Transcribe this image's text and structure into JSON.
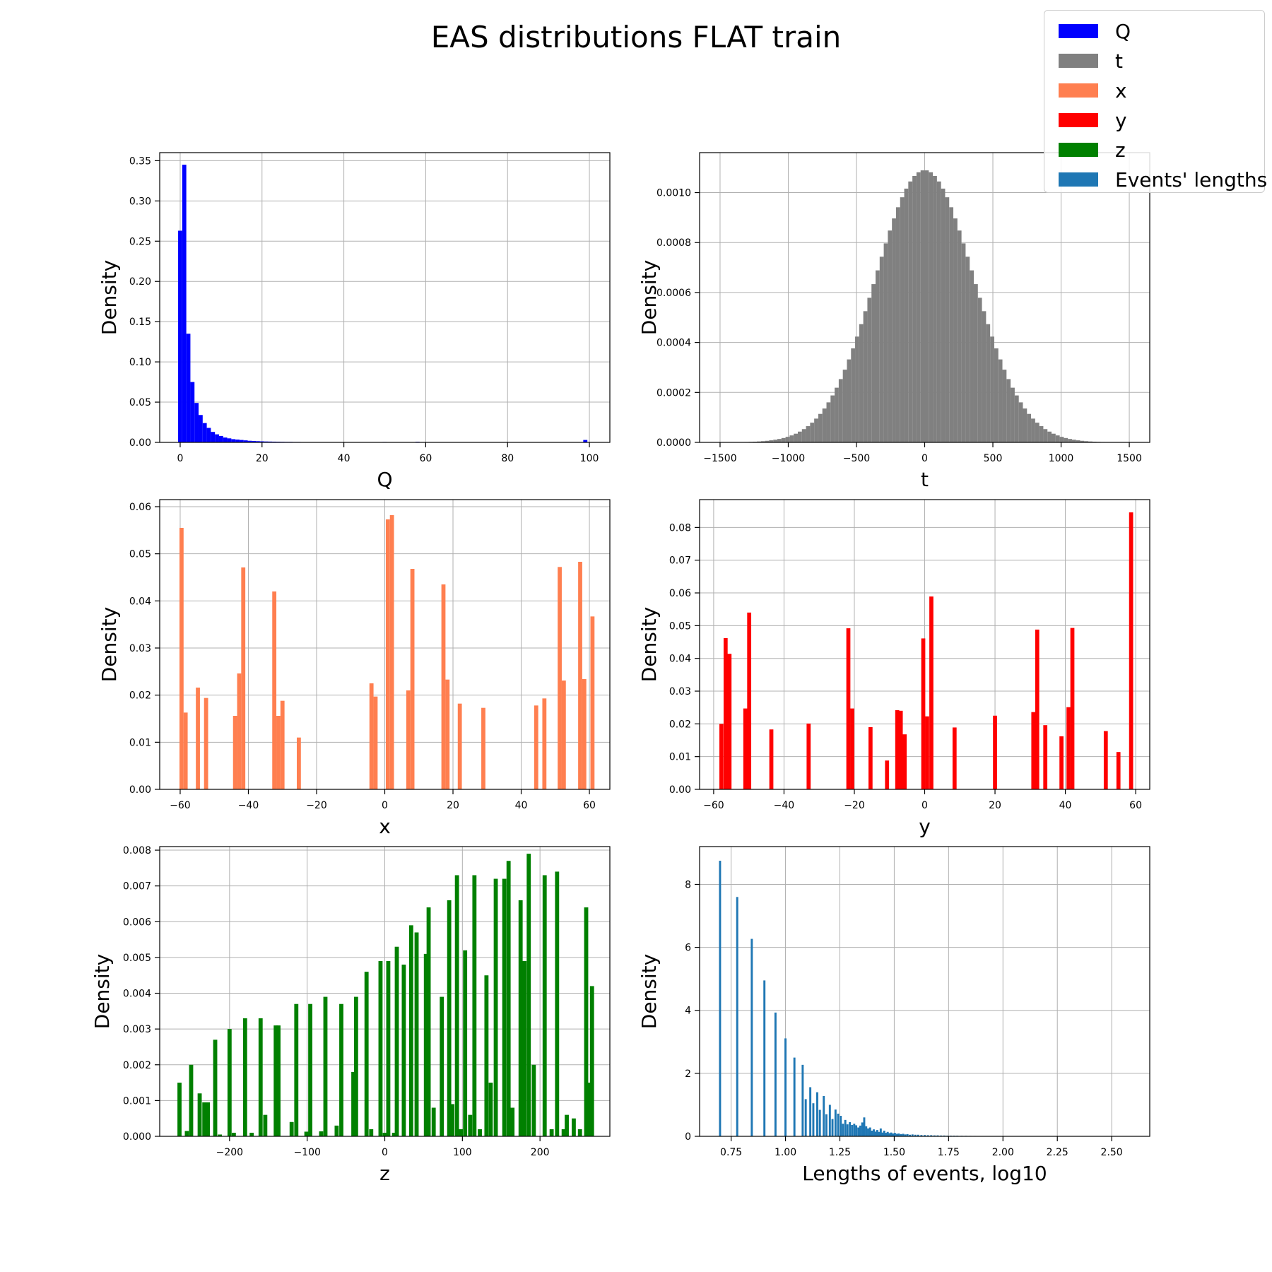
{
  "figure": {
    "title": "EAS distributions FLAT train",
    "legend": [
      {
        "label": "Q",
        "color": "#0000ff"
      },
      {
        "label": "t",
        "color": "#808080"
      },
      {
        "label": "x",
        "color": "#ff7f50"
      },
      {
        "label": "y",
        "color": "#ff0000"
      },
      {
        "label": "z",
        "color": "#008000"
      },
      {
        "label": "Events' lengths",
        "color": "#1f77b4"
      }
    ]
  },
  "chart_data": [
    {
      "type": "bar",
      "name": "Q",
      "color": "#0000ff",
      "xlabel": "Q",
      "ylabel": "Density",
      "xlim": [
        -5,
        105
      ],
      "ylim": [
        0,
        0.36
      ],
      "xticks": [
        0,
        20,
        40,
        60,
        80,
        100
      ],
      "xtick_labels": [
        "0",
        "20",
        "40",
        "60",
        "80",
        "100"
      ],
      "yticks": [
        0,
        0.05,
        0.1,
        0.15,
        0.2,
        0.25,
        0.3,
        0.35
      ],
      "ytick_labels": [
        "0.00",
        "0.05",
        "0.10",
        "0.15",
        "0.20",
        "0.25",
        "0.30",
        "0.35"
      ],
      "grid": true,
      "bin_width": 1,
      "x": [
        0,
        1,
        2,
        3,
        4,
        5,
        6,
        7,
        8,
        9,
        10,
        11,
        12,
        13,
        14,
        15,
        16,
        17,
        18,
        19,
        20,
        21,
        22,
        23,
        24,
        25,
        26,
        27,
        28,
        29,
        30,
        35,
        40,
        45,
        50,
        58,
        99
      ],
      "values": [
        0.263,
        0.345,
        0.135,
        0.075,
        0.049,
        0.034,
        0.024,
        0.018,
        0.013,
        0.01,
        0.008,
        0.006,
        0.005,
        0.004,
        0.0035,
        0.003,
        0.0025,
        0.002,
        0.0018,
        0.0015,
        0.0013,
        0.0011,
        0.001,
        0.0009,
        0.0008,
        0.0007,
        0.0006,
        0.0006,
        0.0005,
        0.0005,
        0.0004,
        0.0003,
        0.0004,
        0.0003,
        0.0005,
        0.0007,
        0.003
      ]
    },
    {
      "type": "bar",
      "name": "t",
      "color": "#808080",
      "xlabel": "t",
      "ylabel": "Density",
      "xlim": [
        -1650,
        1650
      ],
      "ylim": [
        0,
        0.00116
      ],
      "xticks": [
        -1500,
        -1000,
        -500,
        0,
        500,
        1000,
        1500
      ],
      "xtick_labels": [
        "−1500",
        "−1000",
        "−500",
        "0",
        "500",
        "1000",
        "1500"
      ],
      "yticks": [
        0,
        0.0002,
        0.0004,
        0.0006,
        0.0008,
        0.001
      ],
      "ytick_labels": [
        "0.0000",
        "0.0002",
        "0.0004",
        "0.0006",
        "0.0008",
        "0.0010"
      ],
      "grid": true,
      "distribution": {
        "kind": "gaussian",
        "mean": 0,
        "sd": 360,
        "peak": 0.00109
      },
      "bin_start": -1500,
      "bin_end": 1500,
      "bin_width": 30
    },
    {
      "type": "bar",
      "name": "x",
      "color": "#ff7f50",
      "xlabel": "x",
      "ylabel": "Density",
      "xlim": [
        -66,
        66
      ],
      "ylim": [
        0,
        0.0615
      ],
      "xticks": [
        -60,
        -40,
        -20,
        0,
        20,
        40,
        60
      ],
      "xtick_labels": [
        "−60",
        "−40",
        "−20",
        "0",
        "20",
        "40",
        "60"
      ],
      "yticks": [
        0,
        0.01,
        0.02,
        0.03,
        0.04,
        0.05,
        0.06
      ],
      "ytick_labels": [
        "0.00",
        "0.01",
        "0.02",
        "0.03",
        "0.04",
        "0.05",
        "0.06"
      ],
      "grid": true,
      "bin_width": 1.2,
      "x": [
        -59.6,
        -58.4,
        -54.8,
        -52.4,
        -43.9,
        -42.7,
        -41.5,
        -32.4,
        -31.2,
        -30.0,
        -25.2,
        -3.9,
        -2.7,
        0.9,
        2.1,
        6.9,
        8.1,
        17.2,
        18.4,
        22.0,
        28.9,
        44.4,
        46.8,
        51.3,
        52.5,
        57.3,
        58.5,
        60.9
      ],
      "values": [
        0.0555,
        0.0163,
        0.0216,
        0.0194,
        0.0156,
        0.0246,
        0.0471,
        0.042,
        0.0156,
        0.0188,
        0.011,
        0.0225,
        0.0197,
        0.0573,
        0.0582,
        0.021,
        0.0468,
        0.0435,
        0.0233,
        0.0182,
        0.0173,
        0.0178,
        0.0193,
        0.0472,
        0.0231,
        0.0483,
        0.0234,
        0.0367
      ]
    },
    {
      "type": "bar",
      "name": "y",
      "color": "#ff0000",
      "xlabel": "y",
      "ylabel": "Density",
      "xlim": [
        -64,
        64
      ],
      "ylim": [
        0,
        0.0885
      ],
      "xticks": [
        -60,
        -40,
        -20,
        0,
        20,
        40,
        60
      ],
      "xtick_labels": [
        "−60",
        "−40",
        "−20",
        "0",
        "20",
        "40",
        "60"
      ],
      "yticks": [
        0,
        0.01,
        0.02,
        0.03,
        0.04,
        0.05,
        0.06,
        0.07,
        0.08
      ],
      "ytick_labels": [
        "0.00",
        "0.01",
        "0.02",
        "0.03",
        "0.04",
        "0.05",
        "0.06",
        "0.07",
        "0.08"
      ],
      "grid": true,
      "bin_width": 1.15,
      "x": [
        -57.8,
        -56.6,
        -55.5,
        -51.0,
        -49.9,
        -43.6,
        -33.0,
        -21.7,
        -20.6,
        -15.4,
        -10.7,
        -7.8,
        -6.8,
        -5.7,
        -0.4,
        0.7,
        1.9,
        8.5,
        20.0,
        30.9,
        32.0,
        34.3,
        38.9,
        40.9,
        42.0,
        51.5,
        55.1,
        58.7
      ],
      "values": [
        0.02,
        0.0462,
        0.0414,
        0.0247,
        0.054,
        0.0183,
        0.0201,
        0.0492,
        0.0247,
        0.019,
        0.0088,
        0.0242,
        0.024,
        0.0168,
        0.0461,
        0.0223,
        0.0589,
        0.0189,
        0.0225,
        0.0236,
        0.0488,
        0.0196,
        0.0162,
        0.0251,
        0.0493,
        0.0178,
        0.0114,
        0.0846
      ]
    },
    {
      "type": "bar",
      "name": "z",
      "color": "#008000",
      "xlabel": "z",
      "ylabel": "Density",
      "xlim": [
        -290,
        290
      ],
      "ylim": [
        0,
        0.0081
      ],
      "xticks": [
        -200,
        -100,
        0,
        100,
        200
      ],
      "xtick_labels": [
        "−200",
        "−100",
        "0",
        "100",
        "200"
      ],
      "yticks": [
        0,
        0.001,
        0.002,
        0.003,
        0.004,
        0.005,
        0.006,
        0.007,
        0.008
      ],
      "ytick_labels": [
        "0.000",
        "0.001",
        "0.002",
        "0.003",
        "0.004",
        "0.005",
        "0.006",
        "0.007",
        "0.008"
      ],
      "grid": true,
      "bin_width": 5.3,
      "x": [
        -264.5,
        -255.0,
        -249.5,
        -238.5,
        -232.5,
        -228.0,
        -218.5,
        -212.5,
        -200.0,
        -194.5,
        -180.0,
        -171.5,
        -160.0,
        -154.0,
        -140.5,
        -137.0,
        -120.0,
        -114.0,
        -101.0,
        -96.0,
        -82.0,
        -76.5,
        -62.0,
        -56.0,
        -40.5,
        -37.0,
        -23.5,
        -17.5,
        -5.5,
        0.0,
        4.5,
        12.0,
        15.5,
        24.5,
        34.0,
        41.0,
        53.0,
        56.5,
        63.0,
        73.5,
        83.0,
        87.0,
        93.0,
        98.0,
        103.5,
        110.0,
        115.5,
        122.5,
        131.0,
        136.5,
        143.0,
        154.0,
        159.5,
        164.5,
        175.0,
        180.0,
        185.5,
        192.0,
        206.0,
        215.0,
        222.0,
        230.5,
        234.5,
        243.5,
        251.5,
        259.5,
        262.0,
        267.0
      ],
      "values": [
        0.0015,
        0.00015,
        0.002,
        0.0012,
        0.00095,
        0.00095,
        0.0027,
        5e-05,
        0.003,
        0.0001,
        0.0033,
        0.0001,
        0.0033,
        0.0006,
        0.0031,
        0.0031,
        0.0004,
        0.0037,
        0.00013,
        0.0037,
        0.00014,
        0.0039,
        0.0003,
        0.0037,
        0.0018,
        0.0039,
        0.0046,
        0.0002,
        0.0049,
        0.0001,
        0.0049,
        0.0001,
        0.0053,
        0.0048,
        0.0059,
        0.0057,
        0.0051,
        0.0064,
        0.0008,
        0.0039,
        0.0066,
        0.0009,
        0.0073,
        0.0002,
        0.0052,
        0.0006,
        0.0073,
        0.0002,
        0.0045,
        0.0015,
        0.0072,
        0.0072,
        0.0077,
        0.0008,
        0.0066,
        0.0049,
        0.0079,
        0.002,
        0.0073,
        0.0002,
        0.0074,
        0.0002,
        0.0006,
        0.0005,
        0.0002,
        0.0064,
        0.0015,
        0.0042
      ]
    },
    {
      "type": "bar",
      "name": "Events' lengths",
      "color": "#1f77b4",
      "xlabel": "Lengths of events, log10",
      "ylabel": "Density",
      "xlim": [
        0.605,
        2.675
      ],
      "ylim": [
        0,
        9.2
      ],
      "xticks": [
        0.75,
        1.0,
        1.25,
        1.5,
        1.75,
        2.0,
        2.25,
        2.5
      ],
      "xtick_labels": [
        "0.75",
        "1.00",
        "1.25",
        "1.50",
        "1.75",
        "2.00",
        "2.25",
        "2.50"
      ],
      "yticks": [
        0,
        2,
        4,
        6,
        8
      ],
      "ytick_labels": [
        "0",
        "2",
        "4",
        "6",
        "8"
      ],
      "grid": true,
      "bin_width": 0.0095,
      "x": [
        0.699,
        0.778,
        0.845,
        0.903,
        0.954,
        1.0,
        1.041,
        1.079,
        1.093,
        1.114,
        1.128,
        1.146,
        1.158,
        1.176,
        1.188,
        1.204,
        1.216,
        1.23,
        1.242,
        1.254,
        1.264,
        1.275,
        1.285,
        1.296,
        1.306,
        1.316,
        1.325,
        1.335,
        1.344,
        1.353,
        1.362,
        1.371,
        1.38,
        1.389,
        1.397,
        1.406,
        1.414,
        1.422,
        1.43,
        1.438,
        1.446,
        1.454,
        1.462,
        1.47,
        1.478,
        1.486,
        1.494,
        1.503,
        1.512,
        1.521,
        1.531,
        1.541,
        1.551,
        1.561,
        1.572,
        1.584,
        1.597,
        1.61,
        1.625,
        1.64,
        1.655,
        1.67,
        1.685,
        1.7,
        1.715,
        1.73,
        1.745,
        1.76,
        1.775,
        1.79,
        1.81,
        1.83,
        1.85,
        1.87,
        1.89,
        1.91,
        1.93,
        1.95,
        1.97,
        1.99,
        2.03,
        2.06,
        2.1
      ],
      "values": [
        8.75,
        7.6,
        6.27,
        4.95,
        3.93,
        3.11,
        2.5,
        2.27,
        1.18,
        1.56,
        1.05,
        1.4,
        0.84,
        1.28,
        0.7,
        1.0,
        0.55,
        0.85,
        0.72,
        0.65,
        0.4,
        0.52,
        0.38,
        0.45,
        0.36,
        0.4,
        0.35,
        0.28,
        0.34,
        0.44,
        0.6,
        0.32,
        0.25,
        0.28,
        0.18,
        0.22,
        0.15,
        0.2,
        0.14,
        0.25,
        0.12,
        0.18,
        0.11,
        0.14,
        0.1,
        0.12,
        0.09,
        0.11,
        0.08,
        0.09,
        0.07,
        0.08,
        0.06,
        0.07,
        0.05,
        0.06,
        0.05,
        0.05,
        0.04,
        0.04,
        0.035,
        0.035,
        0.03,
        0.03,
        0.025,
        0.025,
        0.02,
        0.02,
        0.02,
        0.018,
        0.016,
        0.015,
        0.013,
        0.012,
        0.011,
        0.01,
        0.009,
        0.008,
        0.007,
        0.006,
        0.005,
        0.004,
        0.003
      ]
    }
  ]
}
